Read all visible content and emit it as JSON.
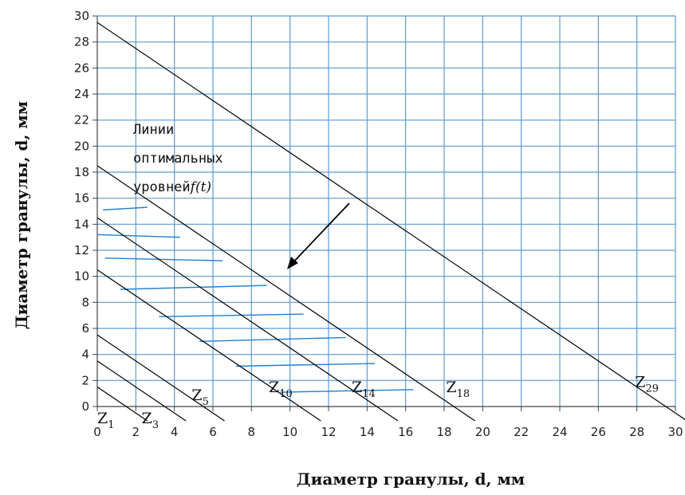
{
  "chart_data": {
    "type": "line",
    "xlabel": "Диаметр гранулы, d, мм",
    "ylabel": "Диаметр гранулы, d, мм",
    "xlim": [
      0,
      30
    ],
    "ylim": [
      0,
      30
    ],
    "xticks": [
      0,
      2,
      4,
      6,
      8,
      10,
      12,
      14,
      16,
      18,
      20,
      22,
      24,
      26,
      28,
      30
    ],
    "yticks": [
      0,
      2,
      4,
      6,
      8,
      10,
      12,
      14,
      16,
      18,
      20,
      22,
      24,
      26,
      28,
      30
    ],
    "grid": true,
    "colors": {
      "grid": "#5b9bd5",
      "lines": "#000000",
      "levels": "#1f7fd0"
    },
    "annotation": [
      "Линии",
      "оптимальных",
      "уровней",
      "f(t)"
    ],
    "diagonals": [
      {
        "base": "Z",
        "sub": "1",
        "intercept": 1.5
      },
      {
        "base": "Z",
        "sub": "3",
        "intercept": 3.5
      },
      {
        "base": "Z",
        "sub": "5",
        "intercept": 5.5
      },
      {
        "base": "Z",
        "sub": "10",
        "intercept": 10.5
      },
      {
        "base": "Z",
        "sub": "14",
        "intercept": 14.5
      },
      {
        "base": "Z",
        "sub": "18",
        "intercept": 18.5
      },
      {
        "base": "Z",
        "sub": "29",
        "intercept": 29.5
      }
    ],
    "level_lines": [
      {
        "x1": 0.3,
        "y1": 15.1,
        "x2": 2.6,
        "y2": 15.3
      },
      {
        "x1": 0.0,
        "y1": 13.2,
        "x2": 4.3,
        "y2": 13.0
      },
      {
        "x1": 0.4,
        "y1": 11.4,
        "x2": 6.5,
        "y2": 11.2
      },
      {
        "x1": 1.2,
        "y1": 9.0,
        "x2": 8.8,
        "y2": 9.3
      },
      {
        "x1": 3.2,
        "y1": 6.9,
        "x2": 10.7,
        "y2": 7.1
      },
      {
        "x1": 5.3,
        "y1": 5.0,
        "x2": 12.9,
        "y2": 5.3
      },
      {
        "x1": 7.2,
        "y1": 3.1,
        "x2": 14.4,
        "y2": 3.3
      },
      {
        "x1": 9.5,
        "y1": 1.1,
        "x2": 16.4,
        "y2": 1.3
      }
    ]
  }
}
